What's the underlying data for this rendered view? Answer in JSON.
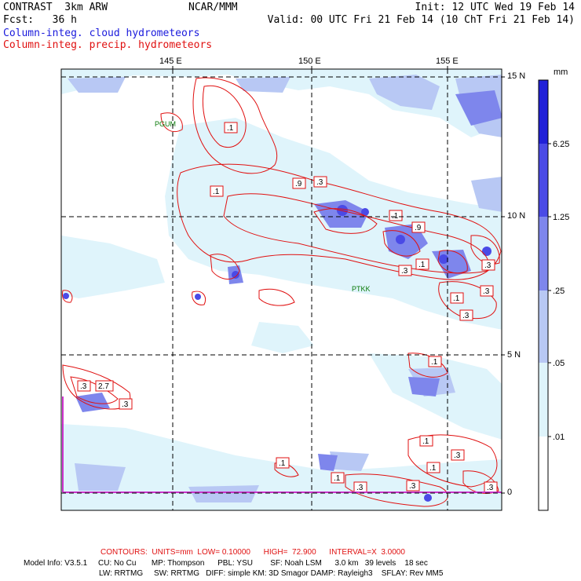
{
  "header": {
    "model": "CONTRAST  3km ARW",
    "center": "NCAR/MMM",
    "init": "Init: 12 UTC Wed 19 Feb 14",
    "fcst": "Fcst:   36 h",
    "valid": "Valid: 00 UTC Fri 21 Feb 14 (10 ChT Fri 21 Feb 14)",
    "field1": "Column-integ. cloud hydrometeors",
    "field2": "Column-integ. precip. hydrometeors"
  },
  "map": {
    "lon_labels": [
      "145 E",
      "150 E",
      "155 E"
    ],
    "lat_labels": [
      "15 N",
      "10 N",
      "5 N",
      "0"
    ],
    "stations": [
      "PGUM",
      "PTKK"
    ],
    "contour_labels": [
      ".1",
      ".1",
      ".9",
      ".3",
      ".1",
      ".9",
      ".3",
      ".3",
      ".1",
      ".3",
      ".3",
      ".1",
      ".3",
      "2.7",
      ".3",
      ".1",
      ".1",
      ".1",
      ".3",
      ".1",
      ".1",
      ".3",
      ".3",
      ".3"
    ],
    "colors": {
      "contour": "#e01010",
      "level1": "#dff4fb",
      "level2": "#b8c8f4",
      "level3": "#7e86ec",
      "level4": "#4a4ae6",
      "level5": "#2020d8",
      "grid": "#000000",
      "boundary": "#cc33cc"
    }
  },
  "colorbar": {
    "unit": "mm",
    "labels": [
      "6.25",
      "1.25",
      ".25",
      ".05",
      ".01"
    ],
    "colors": [
      "#2020d8",
      "#4a4ae6",
      "#7e86ec",
      "#b8c8f4",
      "#dff4fb",
      "#ffffff"
    ]
  },
  "footer": {
    "contours": "CONTOURS:  UNITS=mm  LOW= 0.10000      HIGH=  72.900      INTERVAL=X  3.0000",
    "model_info_1": "Model Info: V3.5.1     CU: No Cu       MP: Thompson      PBL: YSU        SF: Noah LSM      3.0 km   39 levels    18 sec",
    "model_info_2": "LW: RRTMG     SW: RRTMG   DIFF: simple KM: 3D Smagor DAMP: Rayleigh3    SFLAY: Rev MM5"
  }
}
